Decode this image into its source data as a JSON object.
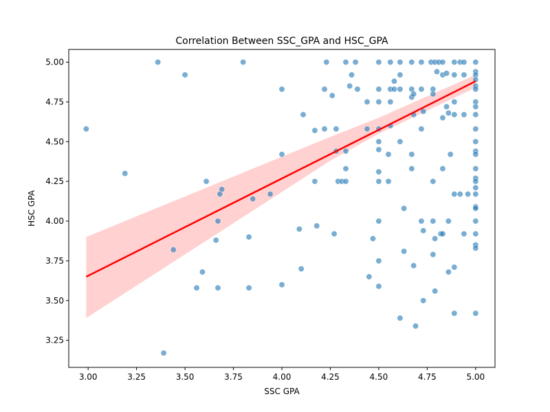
{
  "chart_data": {
    "type": "scatter",
    "title": "Correlation Between SSC_GPA and HSC_GPA",
    "xlabel": "SSC GPA",
    "ylabel": "HSC GPA",
    "xlim": [
      2.9,
      5.1
    ],
    "ylim": [
      3.08,
      5.08
    ],
    "xticks": [
      3.0,
      3.25,
      3.5,
      3.75,
      4.0,
      4.25,
      4.5,
      4.75,
      5.0
    ],
    "yticks": [
      3.25,
      3.5,
      3.75,
      4.0,
      4.25,
      4.5,
      4.75,
      5.0
    ],
    "xtick_labels": [
      "3.00",
      "3.25",
      "3.50",
      "3.75",
      "4.00",
      "4.25",
      "4.50",
      "4.75",
      "5.00"
    ],
    "ytick_labels": [
      "3.25",
      "3.50",
      "3.75",
      "4.00",
      "4.25",
      "4.50",
      "4.75",
      "5.00"
    ],
    "grid": false,
    "colors": {
      "points": "#1f77b4",
      "regression": "#ff0000",
      "band": "#ffb3b3"
    },
    "series": [
      {
        "values": [
          [
            2.99,
            4.58
          ],
          [
            3.19,
            4.3
          ],
          [
            3.36,
            5.0
          ],
          [
            3.39,
            3.17
          ],
          [
            3.44,
            3.82
          ],
          [
            3.5,
            4.92
          ],
          [
            3.56,
            3.58
          ],
          [
            3.59,
            3.68
          ],
          [
            3.61,
            4.25
          ],
          [
            3.66,
            3.88
          ],
          [
            3.67,
            4.0
          ],
          [
            3.67,
            3.58
          ],
          [
            3.68,
            4.17
          ],
          [
            3.69,
            4.2
          ],
          [
            3.8,
            5.0
          ],
          [
            3.83,
            3.9
          ],
          [
            3.83,
            3.58
          ],
          [
            3.85,
            4.14
          ],
          [
            3.94,
            4.17
          ],
          [
            4.0,
            4.83
          ],
          [
            4.0,
            4.42
          ],
          [
            4.0,
            3.6
          ],
          [
            4.09,
            3.95
          ],
          [
            4.1,
            3.7
          ],
          [
            4.11,
            4.67
          ],
          [
            4.17,
            4.57
          ],
          [
            4.17,
            4.25
          ],
          [
            4.18,
            3.97
          ],
          [
            4.22,
            4.83
          ],
          [
            4.22,
            4.58
          ],
          [
            4.23,
            5.0
          ],
          [
            4.26,
            4.79
          ],
          [
            4.27,
            3.92
          ],
          [
            4.28,
            4.58
          ],
          [
            4.28,
            4.44
          ],
          [
            4.29,
            4.25
          ],
          [
            4.31,
            4.25
          ],
          [
            4.33,
            4.44
          ],
          [
            4.33,
            4.33
          ],
          [
            4.33,
            4.25
          ],
          [
            4.33,
            5.0
          ],
          [
            4.35,
            4.85
          ],
          [
            4.36,
            4.92
          ],
          [
            4.38,
            5.0
          ],
          [
            4.39,
            4.83
          ],
          [
            4.44,
            4.75
          ],
          [
            4.44,
            4.58
          ],
          [
            4.45,
            3.65
          ],
          [
            4.47,
            3.89
          ],
          [
            4.5,
            5.0
          ],
          [
            4.5,
            4.83
          ],
          [
            4.5,
            4.75
          ],
          [
            4.5,
            4.58
          ],
          [
            4.5,
            4.5
          ],
          [
            4.5,
            4.45
          ],
          [
            4.5,
            4.31
          ],
          [
            4.5,
            4.25
          ],
          [
            4.5,
            4.0
          ],
          [
            4.5,
            3.75
          ],
          [
            4.5,
            3.59
          ],
          [
            4.55,
            4.42
          ],
          [
            4.55,
            4.25
          ],
          [
            4.56,
            5.0
          ],
          [
            4.56,
            4.83
          ],
          [
            4.56,
            4.75
          ],
          [
            4.56,
            4.6
          ],
          [
            4.58,
            4.88
          ],
          [
            4.58,
            4.83
          ],
          [
            4.61,
            5.0
          ],
          [
            4.61,
            4.92
          ],
          [
            4.61,
            4.83
          ],
          [
            4.61,
            4.5
          ],
          [
            4.61,
            3.39
          ],
          [
            4.63,
            4.08
          ],
          [
            4.63,
            3.81
          ],
          [
            4.67,
            5.0
          ],
          [
            4.67,
            4.83
          ],
          [
            4.67,
            4.78
          ],
          [
            4.67,
            4.42
          ],
          [
            4.67,
            4.33
          ],
          [
            4.68,
            4.8
          ],
          [
            4.68,
            4.67
          ],
          [
            4.68,
            3.72
          ],
          [
            4.69,
            3.34
          ],
          [
            4.72,
            5.0
          ],
          [
            4.72,
            4.83
          ],
          [
            4.72,
            4.58
          ],
          [
            4.72,
            4.0
          ],
          [
            4.73,
            4.69
          ],
          [
            4.73,
            3.94
          ],
          [
            4.73,
            3.5
          ],
          [
            4.77,
            5.0
          ],
          [
            4.78,
            4.83
          ],
          [
            4.78,
            4.8
          ],
          [
            4.78,
            4.25
          ],
          [
            4.78,
            4.0
          ],
          [
            4.78,
            3.79
          ],
          [
            4.79,
            5.0
          ],
          [
            4.79,
            3.89
          ],
          [
            4.79,
            3.56
          ],
          [
            4.8,
            4.94
          ],
          [
            4.81,
            5.0
          ],
          [
            4.82,
            3.92
          ],
          [
            4.83,
            5.0
          ],
          [
            4.83,
            4.92
          ],
          [
            4.83,
            4.65
          ],
          [
            4.83,
            4.33
          ],
          [
            4.83,
            3.92
          ],
          [
            4.85,
            4.93
          ],
          [
            4.85,
            4.72
          ],
          [
            4.86,
            4.68
          ],
          [
            4.86,
            4.0
          ],
          [
            4.86,
            3.68
          ],
          [
            4.87,
            4.42
          ],
          [
            4.89,
            5.0
          ],
          [
            4.89,
            4.92
          ],
          [
            4.89,
            4.75
          ],
          [
            4.89,
            4.67
          ],
          [
            4.89,
            4.17
          ],
          [
            4.89,
            3.71
          ],
          [
            4.89,
            3.42
          ],
          [
            4.92,
            5.0
          ],
          [
            4.92,
            4.17
          ],
          [
            4.94,
            5.0
          ],
          [
            4.94,
            4.92
          ],
          [
            4.94,
            4.67
          ],
          [
            4.94,
            3.92
          ],
          [
            4.96,
            4.17
          ],
          [
            5.0,
            5.0
          ],
          [
            5.0,
            4.94
          ],
          [
            5.0,
            4.92
          ],
          [
            5.0,
            4.89
          ],
          [
            5.0,
            4.85
          ],
          [
            5.0,
            4.83
          ],
          [
            5.0,
            4.75
          ],
          [
            5.0,
            4.72
          ],
          [
            5.0,
            4.67
          ],
          [
            5.0,
            4.58
          ],
          [
            5.0,
            4.5
          ],
          [
            5.0,
            4.44
          ],
          [
            5.0,
            4.42
          ],
          [
            5.0,
            4.33
          ],
          [
            5.0,
            4.27
          ],
          [
            5.0,
            4.25
          ],
          [
            5.0,
            4.21
          ],
          [
            5.0,
            4.17
          ],
          [
            5.0,
            4.09
          ],
          [
            5.0,
            4.08
          ],
          [
            5.0,
            4.0
          ],
          [
            5.0,
            3.92
          ],
          [
            5.0,
            3.85
          ],
          [
            5.0,
            3.83
          ],
          [
            5.0,
            3.42
          ]
        ]
      }
    ],
    "regression": {
      "x": [
        2.99,
        5.0
      ],
      "y": [
        3.65,
        4.88
      ]
    },
    "confidence_band": {
      "x": [
        2.99,
        4.25,
        4.5,
        5.0
      ],
      "lower": [
        3.39,
        4.38,
        4.55,
        4.84
      ],
      "upper": [
        3.9,
        4.53,
        4.65,
        4.92
      ]
    }
  }
}
